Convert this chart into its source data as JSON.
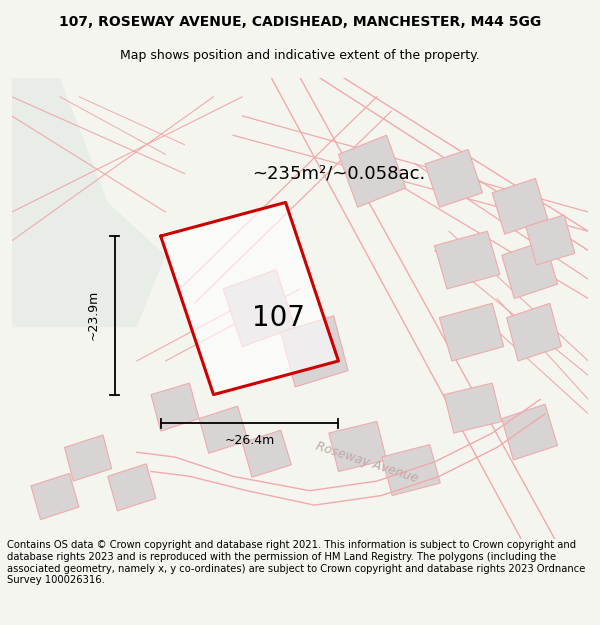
{
  "title_line1": "107, ROSEWAY AVENUE, CADISHEAD, MANCHESTER, M44 5GG",
  "title_line2": "Map shows position and indicative extent of the property.",
  "area_text": "~235m²/~0.058ac.",
  "width_label": "~26.4m",
  "height_label": "~23.9m",
  "number_label": "107",
  "street_label": "Roseway Avenue",
  "footer_text": "Contains OS data © Crown copyright and database right 2021. This information is subject to Crown copyright and database rights 2023 and is reproduced with the permission of HM Land Registry. The polygons (including the associated geometry, namely x, y co-ordinates) are subject to Crown copyright and database rights 2023 Ordnance Survey 100026316.",
  "bg_color": "#f5f5f0",
  "map_bg": "#f8f8f3",
  "green_color": "#e8ede8",
  "road_line_color": "#f0aaaa",
  "main_plot_color": "#cc0000",
  "building_face_color": "#d8d4d4",
  "building_edge_color": "#f0aaaa",
  "road_curve_color": "#ddd0d0"
}
